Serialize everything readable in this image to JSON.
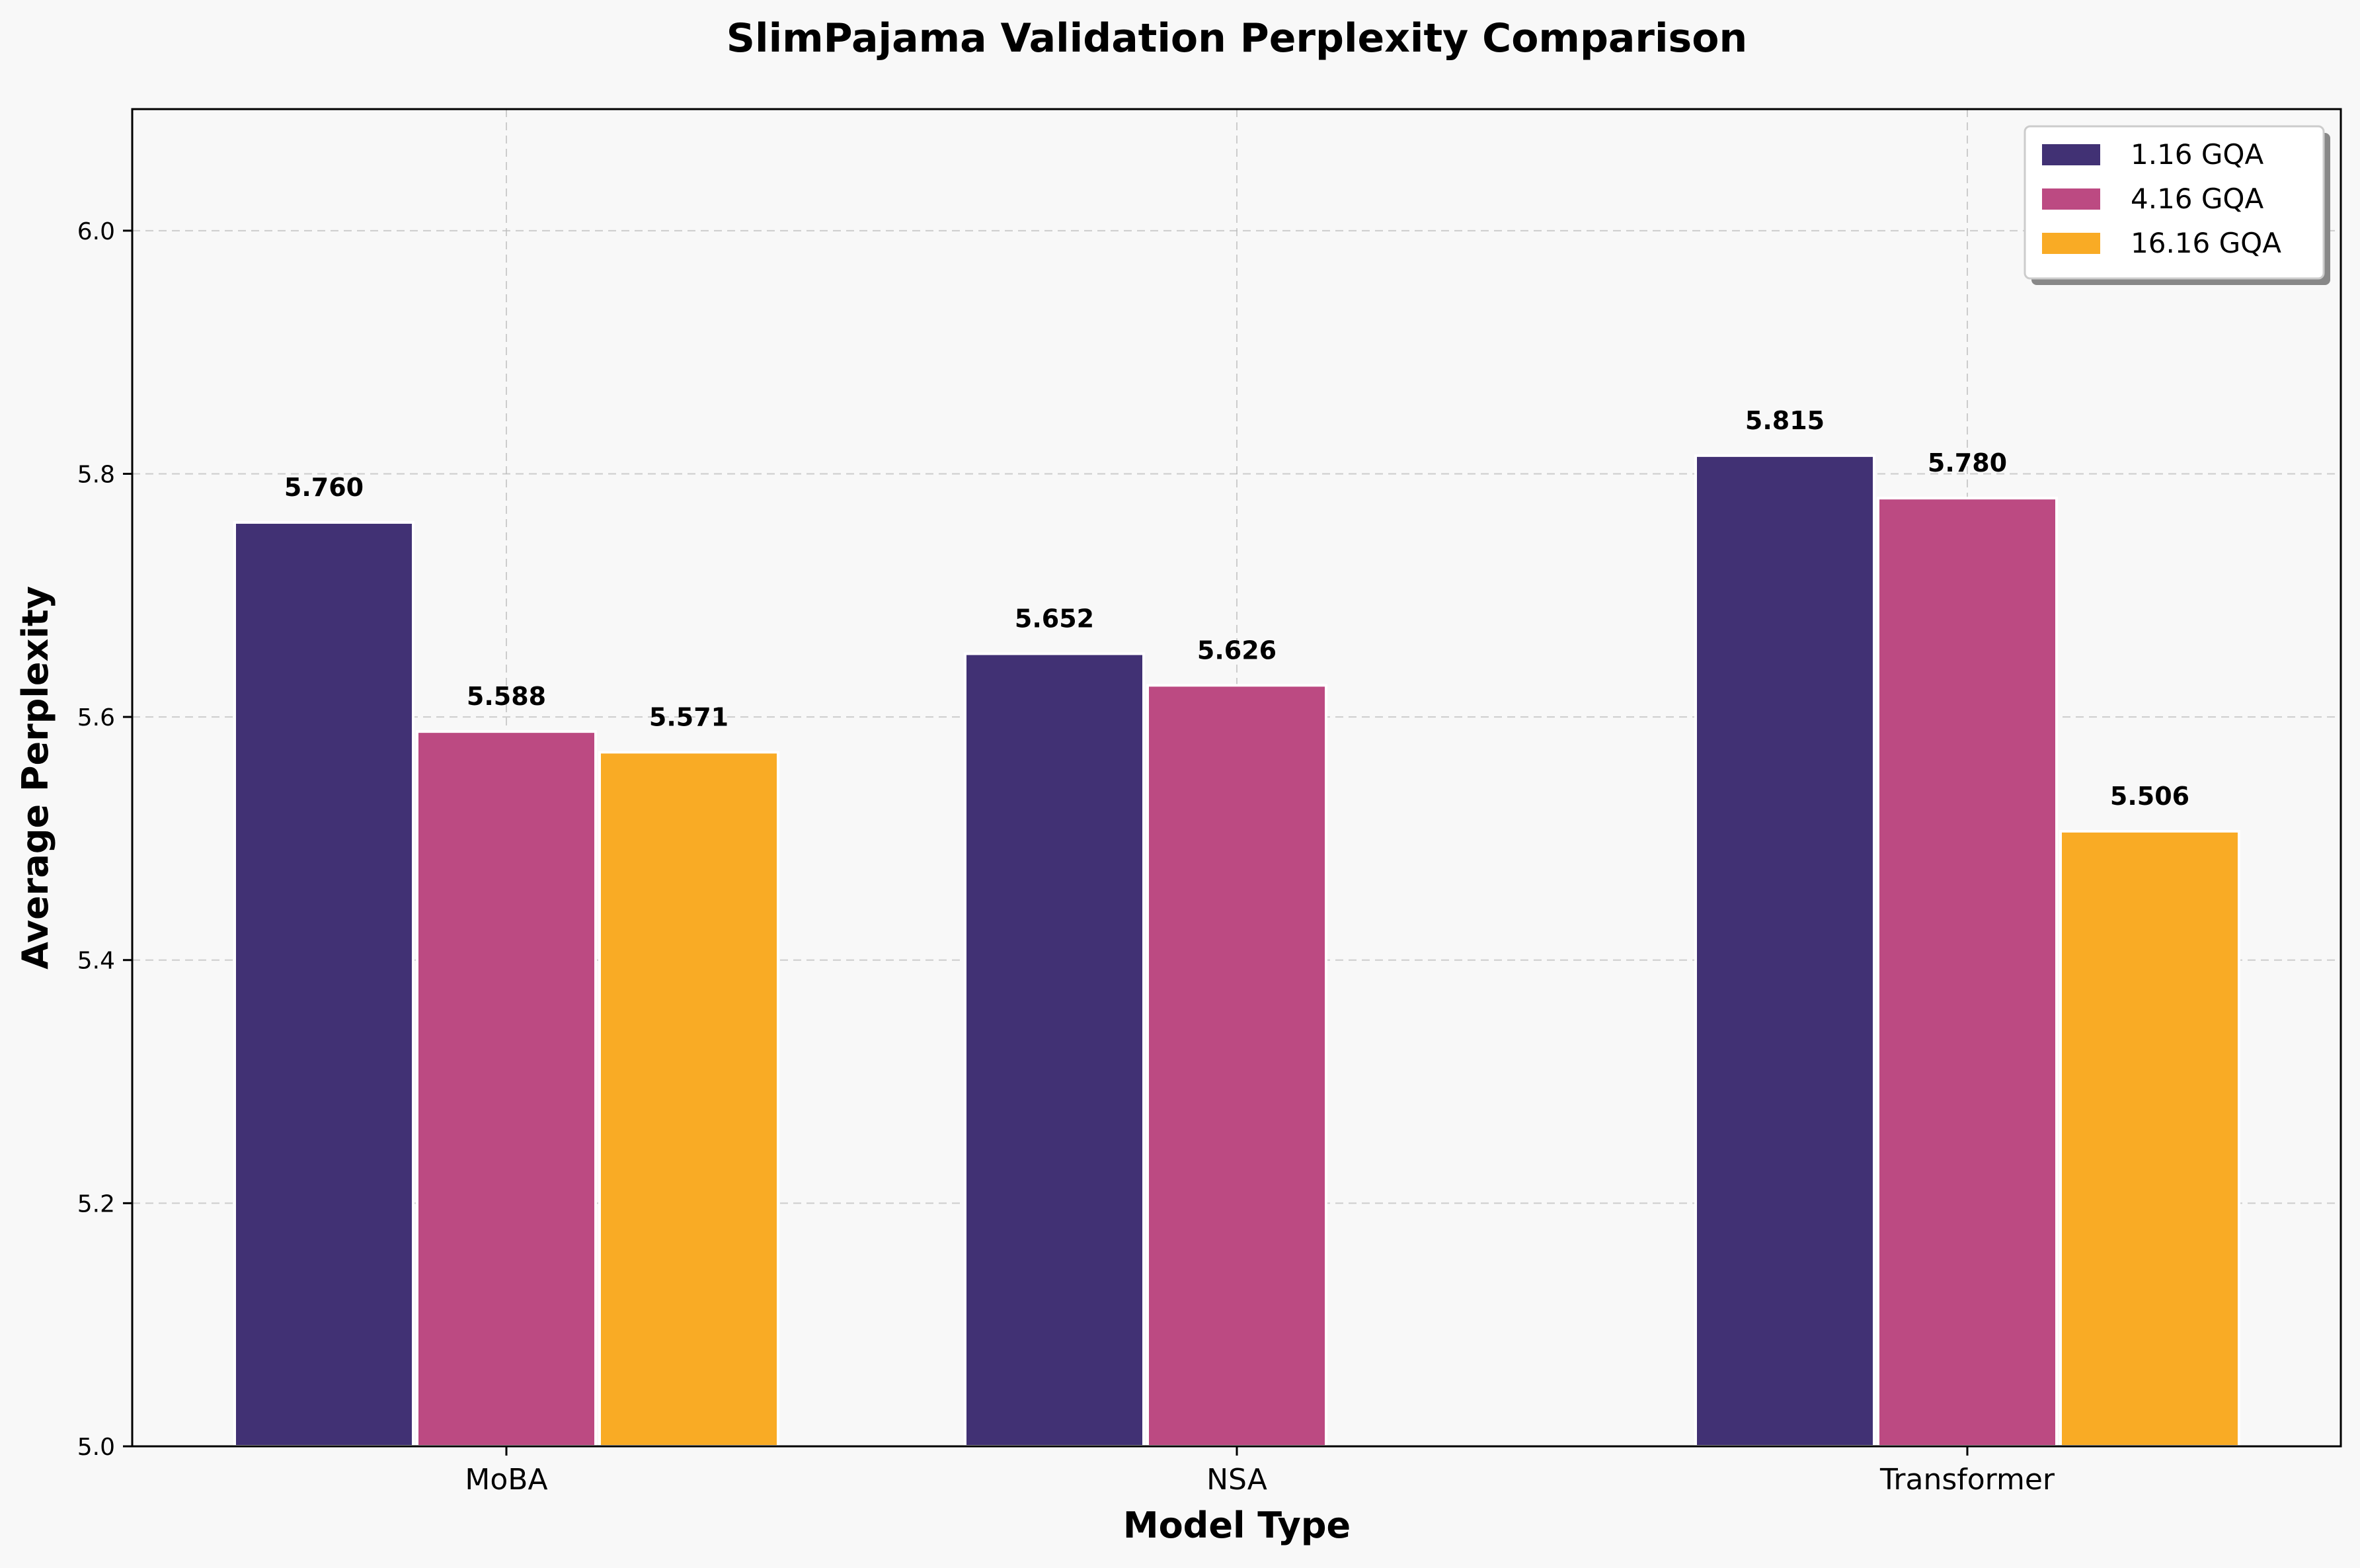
{
  "chart_data": {
    "type": "bar",
    "title": "SlimPajama Validation Perplexity Comparison",
    "xlabel": "Model Type",
    "ylabel": "Average Perplexity",
    "categories": [
      "MoBA",
      "NSA",
      "Transformer"
    ],
    "series": [
      {
        "name": "1.16 GQA",
        "color": "#413174",
        "values": [
          5.76,
          5.652,
          5.815
        ],
        "labels": [
          "5.760",
          "5.652",
          "5.815"
        ]
      },
      {
        "name": "4.16 GQA",
        "color": "#bc4a82",
        "values": [
          5.588,
          5.626,
          5.78
        ],
        "labels": [
          "5.588",
          "5.626",
          "5.780"
        ]
      },
      {
        "name": "16.16 GQA",
        "color": "#f9ab25",
        "values": [
          5.571,
          null,
          5.506
        ],
        "labels": [
          "5.571",
          "",
          "5.506"
        ]
      }
    ],
    "ylim": [
      5.0,
      6.1
    ],
    "yticks": [
      5.0,
      5.2,
      5.4,
      5.6,
      5.8,
      6.0
    ],
    "ytick_labels": [
      "5.0",
      "5.2",
      "5.4",
      "5.6",
      "5.8",
      "6.0"
    ],
    "grid": true,
    "legend_position": "top-right"
  }
}
